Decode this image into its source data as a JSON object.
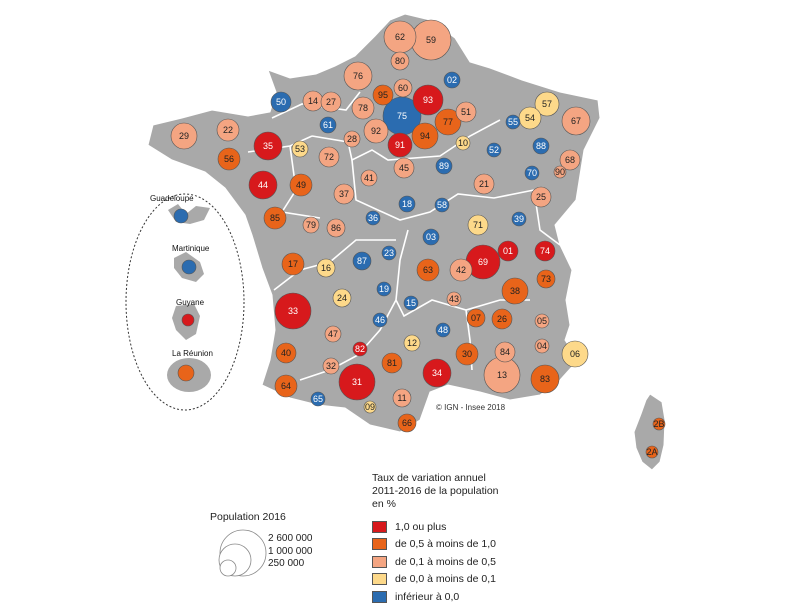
{
  "map": {
    "credit": "© IGN - Insee 2018",
    "colors": {
      "c1": "#d7191c",
      "c2": "#e8641a",
      "c3": "#f4a582",
      "c4": "#fdd98a",
      "c5": "#2b6cb0"
    },
    "departments": [
      {
        "code": "62",
        "cls": "c3"
      },
      {
        "code": "59",
        "cls": "c3"
      },
      {
        "code": "80",
        "cls": "c3"
      },
      {
        "code": "76",
        "cls": "c3"
      },
      {
        "code": "60",
        "cls": "c3"
      },
      {
        "code": "02",
        "cls": "c5"
      },
      {
        "code": "95",
        "cls": "c2"
      },
      {
        "code": "93",
        "cls": "c1"
      },
      {
        "code": "78",
        "cls": "c3"
      },
      {
        "code": "75",
        "cls": "c5"
      },
      {
        "code": "51",
        "cls": "c3"
      },
      {
        "code": "57",
        "cls": "c4"
      },
      {
        "code": "50",
        "cls": "c5"
      },
      {
        "code": "14",
        "cls": "c3"
      },
      {
        "code": "27",
        "cls": "c3"
      },
      {
        "code": "92",
        "cls": "c3"
      },
      {
        "code": "94",
        "cls": "c2"
      },
      {
        "code": "77",
        "cls": "c2"
      },
      {
        "code": "54",
        "cls": "c4"
      },
      {
        "code": "67",
        "cls": "c3"
      },
      {
        "code": "29",
        "cls": "c3"
      },
      {
        "code": "22",
        "cls": "c3"
      },
      {
        "code": "61",
        "cls": "c5"
      },
      {
        "code": "28",
        "cls": "c3"
      },
      {
        "code": "91",
        "cls": "c1"
      },
      {
        "code": "10",
        "cls": "c4"
      },
      {
        "code": "52",
        "cls": "c5"
      },
      {
        "code": "55",
        "cls": "c5"
      },
      {
        "code": "88",
        "cls": "c5"
      },
      {
        "code": "56",
        "cls": "c2"
      },
      {
        "code": "35",
        "cls": "c1"
      },
      {
        "code": "53",
        "cls": "c4"
      },
      {
        "code": "72",
        "cls": "c3"
      },
      {
        "code": "45",
        "cls": "c3"
      },
      {
        "code": "89",
        "cls": "c5"
      },
      {
        "code": "68",
        "cls": "c3"
      },
      {
        "code": "70",
        "cls": "c5"
      },
      {
        "code": "90",
        "cls": "c3"
      },
      {
        "code": "44",
        "cls": "c1"
      },
      {
        "code": "49",
        "cls": "c2"
      },
      {
        "code": "41",
        "cls": "c3"
      },
      {
        "code": "21",
        "cls": "c3"
      },
      {
        "code": "25",
        "cls": "c3"
      },
      {
        "code": "37",
        "cls": "c3"
      },
      {
        "code": "18",
        "cls": "c5"
      },
      {
        "code": "58",
        "cls": "c5"
      },
      {
        "code": "85",
        "cls": "c2"
      },
      {
        "code": "79",
        "cls": "c3"
      },
      {
        "code": "86",
        "cls": "c3"
      },
      {
        "code": "36",
        "cls": "c5"
      },
      {
        "code": "71",
        "cls": "c4"
      },
      {
        "code": "39",
        "cls": "c5"
      },
      {
        "code": "03",
        "cls": "c5"
      },
      {
        "code": "01",
        "cls": "c1"
      },
      {
        "code": "74",
        "cls": "c1"
      },
      {
        "code": "17",
        "cls": "c2"
      },
      {
        "code": "16",
        "cls": "c4"
      },
      {
        "code": "87",
        "cls": "c5"
      },
      {
        "code": "23",
        "cls": "c5"
      },
      {
        "code": "63",
        "cls": "c2"
      },
      {
        "code": "42",
        "cls": "c3"
      },
      {
        "code": "69",
        "cls": "c1"
      },
      {
        "code": "73",
        "cls": "c2"
      },
      {
        "code": "38",
        "cls": "c2"
      },
      {
        "code": "24",
        "cls": "c4"
      },
      {
        "code": "19",
        "cls": "c5"
      },
      {
        "code": "15",
        "cls": "c5"
      },
      {
        "code": "43",
        "cls": "c3"
      },
      {
        "code": "33",
        "cls": "c1"
      },
      {
        "code": "46",
        "cls": "c5"
      },
      {
        "code": "07",
        "cls": "c2"
      },
      {
        "code": "26",
        "cls": "c2"
      },
      {
        "code": "05",
        "cls": "c3"
      },
      {
        "code": "47",
        "cls": "c3"
      },
      {
        "code": "12",
        "cls": "c4"
      },
      {
        "code": "48",
        "cls": "c5"
      },
      {
        "code": "04",
        "cls": "c3"
      },
      {
        "code": "82",
        "cls": "c1"
      },
      {
        "code": "84",
        "cls": "c3"
      },
      {
        "code": "06",
        "cls": "c4"
      },
      {
        "code": "40",
        "cls": "c2"
      },
      {
        "code": "32",
        "cls": "c3"
      },
      {
        "code": "81",
        "cls": "c2"
      },
      {
        "code": "30",
        "cls": "c2"
      },
      {
        "code": "31",
        "cls": "c1"
      },
      {
        "code": "34",
        "cls": "c1"
      },
      {
        "code": "13",
        "cls": "c3"
      },
      {
        "code": "83",
        "cls": "c2"
      },
      {
        "code": "64",
        "cls": "c2"
      },
      {
        "code": "65",
        "cls": "c5"
      },
      {
        "code": "09",
        "cls": "c4"
      },
      {
        "code": "11",
        "cls": "c3"
      },
      {
        "code": "66",
        "cls": "c2"
      },
      {
        "code": "2B",
        "cls": "c2"
      },
      {
        "code": "2A",
        "cls": "c2"
      }
    ],
    "overseas": [
      {
        "name": "Guadeloupe",
        "cls": "c5"
      },
      {
        "name": "Martinique",
        "cls": "c5"
      },
      {
        "name": "Guyane",
        "cls": "c1"
      },
      {
        "name": "La Réunion",
        "cls": "c2"
      }
    ]
  },
  "legend": {
    "title_lines": [
      "Taux de variation annuel",
      "2011-2016 de la population",
      "en %"
    ],
    "classes": [
      {
        "label": "1,0 ou plus",
        "color": "#d7191c"
      },
      {
        "label": "de 0,5 à moins de 1,0",
        "color": "#e8641a"
      },
      {
        "label": "de 0,1 à moins de 0,5",
        "color": "#f4a582"
      },
      {
        "label": "de 0,0 à moins de 0,1",
        "color": "#fdd98a"
      },
      {
        "label": "inférieur à 0,0",
        "color": "#2b6cb0"
      }
    ]
  },
  "size_legend": {
    "title": "Population 2016",
    "values": [
      "2 600 000",
      "1 000 000",
      "250 000"
    ]
  }
}
